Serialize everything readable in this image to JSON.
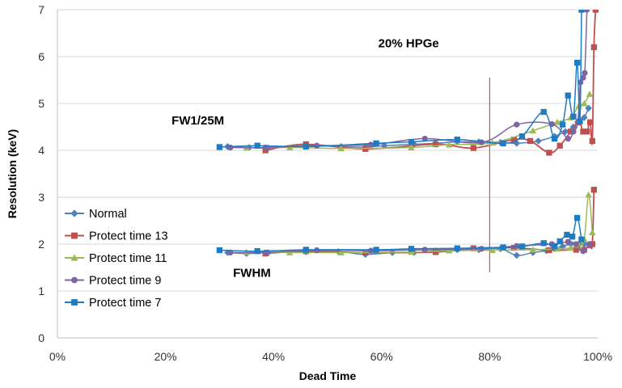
{
  "chart_data": {
    "type": "line",
    "title": "",
    "xlabel": "Dead Time",
    "ylabel": "Resolution (keV)",
    "xlim": [
      0,
      100
    ],
    "ylim": [
      0,
      7
    ],
    "x_ticks": [
      "0%",
      "20%",
      "40%",
      "60%",
      "80%",
      "100%"
    ],
    "y_ticks": [
      "0",
      "1",
      "2",
      "3",
      "4",
      "5",
      "6",
      "7"
    ],
    "grid": "horizontal",
    "legend_position": "lower-left",
    "annotations": [
      {
        "id": "hpge",
        "text": "20% HPGe",
        "x": 65,
        "y": 6.2
      },
      {
        "id": "fw25m",
        "text": "FW1/25M",
        "x": 26,
        "y": 4.55
      },
      {
        "id": "fwhm",
        "text": "FWHM",
        "x": 36,
        "y": 1.3
      }
    ],
    "reference_line": {
      "x": 80,
      "y_from": 1.4,
      "y_to": 5.55,
      "color": "#e8474b"
    },
    "series": [
      {
        "name": "Normal",
        "color": "#4f81bd",
        "marker": "diamond",
        "groups": [
          {
            "x": [
              31.5,
              35.5,
              39,
              46,
              52.5,
              57,
              60.5,
              66,
              70,
              74,
              78,
              82,
              85,
              89,
              92,
              94,
              95.5,
              96.5,
              97.5,
              98.3
            ],
            "y": [
              4.08,
              4.06,
              4.05,
              4.1,
              4.08,
              4.07,
              4.1,
              4.13,
              4.15,
              4.18,
              4.18,
              4.17,
              4.15,
              4.2,
              4.3,
              4.4,
              4.5,
              4.6,
              4.7,
              4.9
            ]
          },
          {
            "x": [
              31.5,
              35,
              39,
              46,
              52,
              57,
              62,
              66,
              70,
              74,
              78,
              82,
              85,
              88,
              90.5,
              92,
              93.5,
              95,
              96.5,
              97.5,
              98.5
            ],
            "y": [
              1.82,
              1.8,
              1.82,
              1.84,
              1.84,
              1.78,
              1.82,
              1.82,
              1.86,
              1.88,
              1.88,
              1.9,
              1.76,
              1.82,
              1.86,
              1.9,
              1.95,
              2.0,
              2.0,
              2.0,
              1.98
            ]
          }
        ]
      },
      {
        "name": "Protect time 13",
        "color": "#c0504d",
        "marker": "square",
        "groups": [
          {
            "x": [
              38.5,
              46,
              57,
              70,
              77,
              84.5,
              87.5,
              91,
              93,
              95,
              96.5,
              97.3,
              98,
              98.6,
              99,
              99.3,
              99.6
            ],
            "y": [
              4.0,
              4.13,
              4.03,
              4.13,
              4.05,
              4.23,
              4.2,
              3.95,
              4.1,
              4.4,
              4.6,
              4.4,
              4.4,
              4.6,
              4.2,
              6.2,
              7.0
            ]
          },
          {
            "x": [
              38.5,
              46,
              57,
              70,
              77,
              84.5,
              91,
              96,
              97.5,
              98.5,
              99,
              99.3
            ],
            "y": [
              1.8,
              1.85,
              1.82,
              1.83,
              1.91,
              1.92,
              1.87,
              1.88,
              1.88,
              1.98,
              2.0,
              3.16
            ]
          }
        ]
      },
      {
        "name": "Protect time 11",
        "color": "#9bbb59",
        "marker": "triangle",
        "groups": [
          {
            "x": [
              35,
              43,
              52.5,
              65.5,
              72.5,
              80.5,
              88,
              92.5,
              95,
              96.5,
              97.5,
              98.5
            ],
            "y": [
              4.05,
              4.06,
              4.04,
              4.06,
              4.12,
              4.16,
              4.42,
              4.6,
              4.7,
              4.95,
              5.0,
              5.2
            ]
          },
          {
            "x": [
              35,
              43,
              52.5,
              65.5,
              72.5,
              80.5,
              88,
              92.5,
              95,
              96.5,
              97.5,
              98.3,
              99
            ],
            "y": [
              1.83,
              1.82,
              1.82,
              1.83,
              1.86,
              1.87,
              1.88,
              1.9,
              1.92,
              1.98,
              2.1,
              3.05,
              2.25
            ]
          }
        ]
      },
      {
        "name": "Protect time 9",
        "color": "#8064a2",
        "marker": "circle",
        "groups": [
          {
            "x": [
              32,
              38.5,
              48,
              58,
              68,
              78.5,
              85,
              91.5,
              94.5,
              95.5,
              96.3,
              96.8,
              97.3,
              97.6,
              98
            ],
            "y": [
              4.06,
              4.06,
              4.1,
              4.12,
              4.25,
              4.17,
              4.55,
              4.56,
              4.25,
              4.4,
              4.6,
              5.45,
              5.55,
              5.65,
              7.0
            ]
          },
          {
            "x": [
              32,
              38.5,
              48,
              58,
              68,
              78.5,
              85,
              91.5,
              94.5,
              96,
              97.3,
              98.5
            ],
            "y": [
              1.82,
              1.82,
              1.87,
              1.86,
              1.88,
              1.9,
              1.96,
              2.0,
              2.05,
              2.0,
              1.85,
              2.0
            ]
          }
        ]
      },
      {
        "name": "Protect time 7",
        "color": "#1f7bc2",
        "marker": "square",
        "groups": [
          {
            "x": [
              30,
              37,
              46,
              59,
              65.5,
              74,
              82.5,
              86,
              90,
              92,
              93.5,
              94.5,
              95.5,
              96.2,
              96.7,
              97
            ],
            "y": [
              4.07,
              4.1,
              4.08,
              4.15,
              4.18,
              4.23,
              4.15,
              4.3,
              4.82,
              4.25,
              4.55,
              5.17,
              4.72,
              5.87,
              4.62,
              7.0
            ]
          },
          {
            "x": [
              30,
              37,
              46,
              59,
              65.5,
              74,
              82.5,
              86,
              90,
              92,
              93,
              94.3,
              95.3,
              96.2,
              97
            ],
            "y": [
              1.87,
              1.85,
              1.88,
              1.88,
              1.9,
              1.91,
              1.93,
              1.95,
              2.02,
              1.95,
              2.06,
              2.2,
              2.16,
              2.56,
              2.1
            ]
          }
        ]
      }
    ]
  }
}
